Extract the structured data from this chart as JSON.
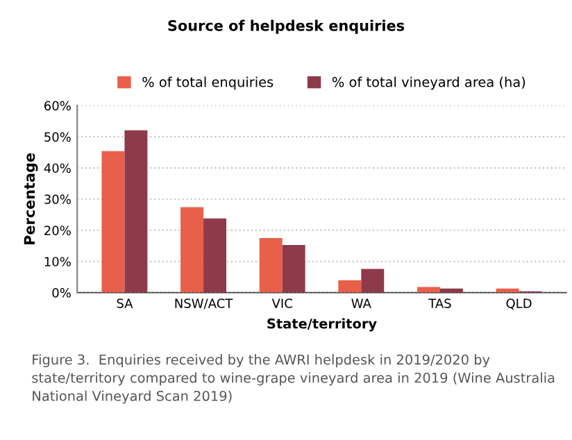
{
  "chart_data": {
    "type": "bar",
    "title": "Source of helpdesk enquiries",
    "xlabel": "State/territory",
    "ylabel": "Percentage",
    "categories": [
      "SA",
      "NSW/ACT",
      "VIC",
      "WA",
      "TAS",
      "QLD"
    ],
    "series": [
      {
        "name": "% of total enquiries",
        "color": "#e8604a",
        "values": [
          45.4,
          27.4,
          17.5,
          4.0,
          1.8,
          1.3
        ]
      },
      {
        "name": "% of total vineyard area (ha)",
        "color": "#8e3a4a",
        "values": [
          52.1,
          23.8,
          15.3,
          7.6,
          1.3,
          0.4
        ]
      }
    ],
    "ylim": [
      0,
      60
    ],
    "yticks": [
      {
        "value": 0,
        "label": "0%"
      },
      {
        "value": 10,
        "label": "10%"
      },
      {
        "value": 20,
        "label": "20%"
      },
      {
        "value": 30,
        "label": "30%"
      },
      {
        "value": 40,
        "label": "40%"
      },
      {
        "value": 50,
        "label": "50%"
      },
      {
        "value": 60,
        "label": "60%"
      }
    ],
    "grid": "y",
    "legend": "top",
    "annotations": [
      "Figure 3.  Enquiries received by the AWRI helpdesk in 2019/2020 by state/territory compared to wine-grape vineyard area in 2019 (Wine Australia National Vineyard Scan 2019)"
    ]
  }
}
